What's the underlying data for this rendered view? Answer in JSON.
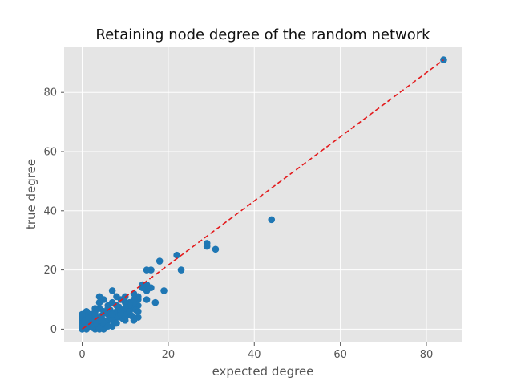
{
  "chart_data": {
    "type": "scatter",
    "title": "Retaining node degree of the random network",
    "xlabel": "expected degree",
    "ylabel": "true degree",
    "xlim": [
      -4.2,
      88.2
    ],
    "ylim": [
      -4.5,
      95.5
    ],
    "xticks": [
      0,
      20,
      40,
      60,
      80
    ],
    "yticks": [
      0,
      20,
      40,
      60,
      80
    ],
    "grid": true,
    "colors": {
      "background": "#e5e5e5",
      "grid": "#ffffff",
      "points": "#1f77b4",
      "reference_line": "#e31a1c"
    },
    "series": [
      {
        "kind": "points",
        "x": [
          84,
          44,
          31,
          29,
          29,
          23,
          22,
          18,
          16,
          15,
          15,
          15,
          14,
          15,
          14,
          16,
          17,
          19,
          13,
          13,
          13,
          12,
          12,
          11,
          11,
          10,
          10,
          9,
          9,
          8,
          8,
          7,
          7,
          7,
          6,
          6,
          5,
          5,
          5,
          4,
          4,
          4,
          4,
          3,
          3,
          3,
          3,
          2,
          2,
          2,
          2,
          2,
          1,
          1,
          1,
          1,
          1,
          1,
          0,
          0,
          0,
          0,
          0,
          0,
          0.5,
          0.5,
          1.5,
          1.5,
          2.5,
          2.5,
          3.5,
          3.5,
          4.5,
          4.5,
          5.5,
          5.5,
          6.5,
          6.5,
          7.5,
          7.5,
          8.5,
          8.5,
          9.5,
          9.5,
          10.5,
          11.5,
          12.5,
          12,
          11,
          10,
          9,
          8,
          7,
          6,
          5,
          4,
          3,
          2,
          1,
          6,
          8,
          10,
          12,
          11,
          9,
          7,
          5,
          3,
          13,
          13,
          4,
          6,
          8,
          10,
          12
        ],
        "y": [
          91,
          37,
          27,
          28,
          29,
          20,
          25,
          23,
          20,
          20,
          13,
          10,
          14,
          15,
          15,
          14,
          9,
          13,
          11,
          10,
          8,
          7,
          12,
          5,
          9,
          3,
          11,
          4,
          10,
          6,
          11,
          13,
          1,
          9,
          5,
          8,
          0,
          3,
          10,
          1,
          7,
          9,
          11,
          0,
          4,
          6,
          7,
          1,
          2,
          3,
          4,
          5,
          0,
          1,
          2,
          3,
          4,
          6,
          0,
          1,
          2,
          3,
          4,
          5,
          0.5,
          2.5,
          1.5,
          3.5,
          0.5,
          2.5,
          1.5,
          3.5,
          2.5,
          4.5,
          1.5,
          5.5,
          3.5,
          6.5,
          2.5,
          5.5,
          4.5,
          7.5,
          3.5,
          6.5,
          5.5,
          4.5,
          6.5,
          9,
          8,
          7,
          6,
          4,
          5,
          3,
          2,
          3,
          2,
          1,
          1,
          7,
          8,
          9,
          10,
          6,
          5,
          3,
          6,
          5,
          6,
          4,
          0,
          1,
          2,
          4,
          3
        ]
      },
      {
        "kind": "line",
        "style": "dashed",
        "x": [
          0,
          84
        ],
        "y": [
          0,
          91
        ]
      }
    ]
  }
}
